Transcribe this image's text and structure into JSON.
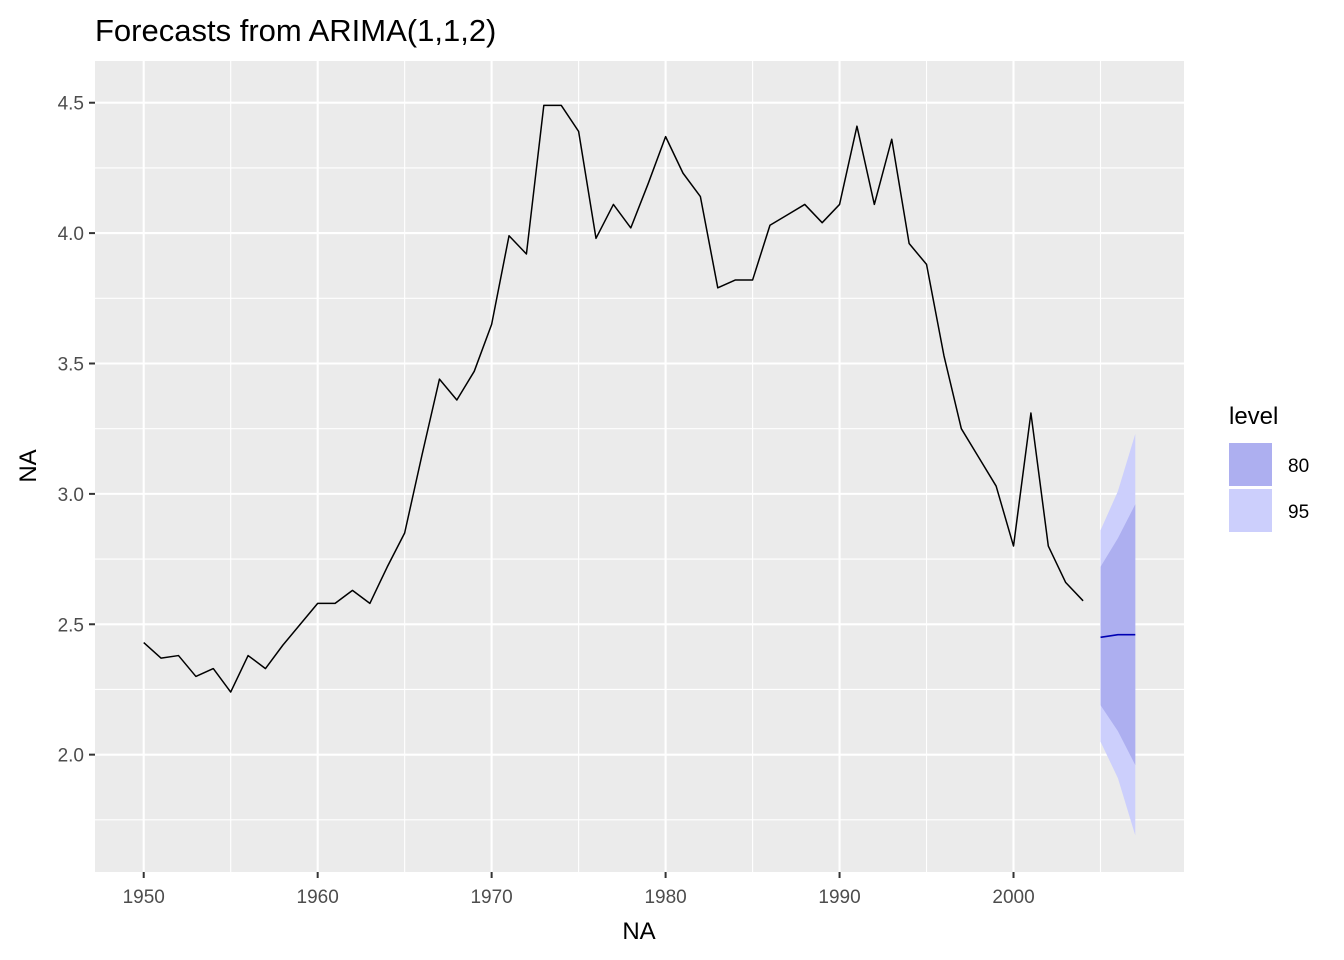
{
  "chart_data": {
    "type": "line",
    "title": "Forecasts from ARIMA(1,1,2)",
    "xlabel": "NA",
    "ylabel": "NA",
    "xlim": [
      1947.2,
      2009.8
    ],
    "ylim": [
      1.55,
      4.66
    ],
    "x_ticks": [
      1950,
      1960,
      1970,
      1980,
      1990,
      2000
    ],
    "x_tick_labels": [
      "1950",
      "1960",
      "1970",
      "1980",
      "1990",
      "2000"
    ],
    "y_ticks": [
      2.0,
      2.5,
      3.0,
      3.5,
      4.0,
      4.5
    ],
    "y_tick_labels": [
      "2.0",
      "2.5",
      "3.0",
      "3.5",
      "4.0",
      "4.5"
    ],
    "grid": true,
    "legend": {
      "title": "level",
      "placement": "right",
      "entries": [
        {
          "label": "80",
          "color": "#adaff0"
        },
        {
          "label": "95",
          "color": "#cccffc"
        }
      ]
    },
    "series": [
      {
        "color": "#000000",
        "x": [
          1950,
          1951,
          1952,
          1953,
          1954,
          1955,
          1956,
          1957,
          1958,
          1959,
          1960,
          1961,
          1962,
          1963,
          1964,
          1965,
          1966,
          1967,
          1968,
          1969,
          1970,
          1971,
          1972,
          1973,
          1974,
          1975,
          1976,
          1977,
          1978,
          1979,
          1980,
          1981,
          1982,
          1983,
          1984,
          1985,
          1986,
          1987,
          1988,
          1989,
          1990,
          1991,
          1992,
          1993,
          1994,
          1995,
          1996,
          1997,
          1998,
          1999,
          2000,
          2001,
          2002,
          2003,
          2004
        ],
        "values": [
          2.43,
          2.37,
          2.38,
          2.3,
          2.33,
          2.24,
          2.38,
          2.33,
          2.42,
          2.5,
          2.58,
          2.58,
          2.63,
          2.58,
          2.72,
          2.85,
          3.15,
          3.44,
          3.36,
          3.47,
          3.65,
          3.99,
          3.92,
          4.49,
          4.49,
          4.39,
          3.98,
          4.11,
          4.02,
          4.19,
          4.37,
          4.23,
          4.14,
          3.79,
          3.82,
          3.82,
          4.03,
          4.07,
          4.11,
          4.04,
          4.11,
          4.41,
          4.11,
          4.36,
          3.96,
          3.88,
          3.53,
          3.25,
          3.14,
          3.03,
          2.8,
          3.31,
          2.8,
          2.66,
          2.59
        ]
      }
    ],
    "forecast": {
      "x": [
        2005,
        2006,
        2007
      ],
      "mean": [
        2.45,
        2.46,
        2.46
      ],
      "lo80": [
        2.19,
        2.09,
        1.96
      ],
      "hi80": [
        2.72,
        2.83,
        2.96
      ],
      "lo95": [
        2.05,
        1.91,
        1.69
      ],
      "hi95": [
        2.86,
        3.01,
        3.23
      ],
      "line_color": "#0000b3",
      "band80_color": "#adaff0",
      "band95_color": "#cccffc"
    },
    "panel_color": "#ebebeb",
    "grid_color": "#ffffff"
  }
}
